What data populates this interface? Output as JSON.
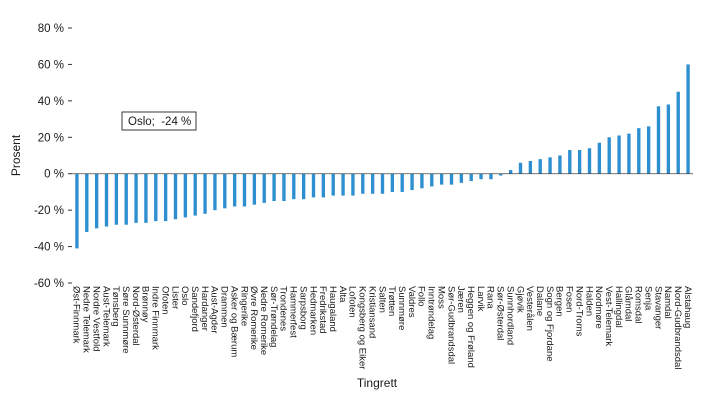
{
  "chart_data": {
    "type": "bar",
    "title": "",
    "xlabel": "Tingrett",
    "ylabel": "Prosent",
    "ylim": [
      -60,
      80
    ],
    "yticks": [
      -60,
      -40,
      -20,
      0,
      20,
      40,
      60,
      80
    ],
    "ytick_suffix": " %",
    "grid": false,
    "legend": "none",
    "bar_color": "#2d8fd0",
    "annotation": "Oslo;  -24 %",
    "categories": [
      "Øst-Finnmark",
      "Nedre Telemark",
      "Nordre Vestfold",
      "Aust-Telemark",
      "Tønsberg",
      "Søre Sunnmøre",
      "Nord-Østerdal",
      "Brønnøy",
      "Indre Finnmark",
      "Ofoten",
      "Lister",
      "Oslo",
      "Sandefjord",
      "Hardanger",
      "Aust-Agder",
      "Drammen",
      "Asker og Bærum",
      "Ringerike",
      "Øvre Romerike",
      "Nedre Romerike",
      "Sør-Trøndelag",
      "Trondenes",
      "Hammerfest",
      "Sarpsborg",
      "Hedmarken",
      "Fredrikstad",
      "Haugaland",
      "Alta",
      "Lofoten",
      "Kongsberg og Eiker",
      "Kristiansand",
      "Salten",
      "Trøtten",
      "Sunnmøre",
      "Valdres",
      "Follo",
      "Inntrøndelag",
      "Moss",
      "Sør-Gudbrandsdal",
      "Jæren",
      "Heggen og Frøland",
      "Larvik",
      "Rana",
      "Sør-Østerdal",
      "Sunnhordland",
      "Gjøvik",
      "Vesterålen",
      "Dalane",
      "Sogn og Fjordane",
      "Bergen",
      "Fosen",
      "Nord-Troms",
      "Halden",
      "Nordmøre",
      "Vest-Telemark",
      "Hallingdal",
      "Glåmdal",
      "Romsdal",
      "Senja",
      "Stavanger",
      "Namdal",
      "Nord-Gudbrandsdal",
      "Alstahaug"
    ],
    "values": [
      -41,
      -32,
      -30,
      -29,
      -28,
      -28,
      -27,
      -27,
      -26,
      -26,
      -25,
      -24,
      -23,
      -22,
      -20,
      -19,
      -18,
      -18,
      -17,
      -16,
      -15,
      -15,
      -14,
      -14,
      -13,
      -13,
      -12,
      -12,
      -12,
      -11,
      -11,
      -11,
      -10,
      -10,
      -9,
      -8,
      -7,
      -6,
      -6,
      -5,
      -4,
      -3,
      -3,
      -1,
      2,
      6,
      7,
      8,
      9,
      10,
      13,
      13,
      14,
      17,
      20,
      21,
      22,
      25,
      26,
      37,
      38,
      45,
      60
    ]
  }
}
